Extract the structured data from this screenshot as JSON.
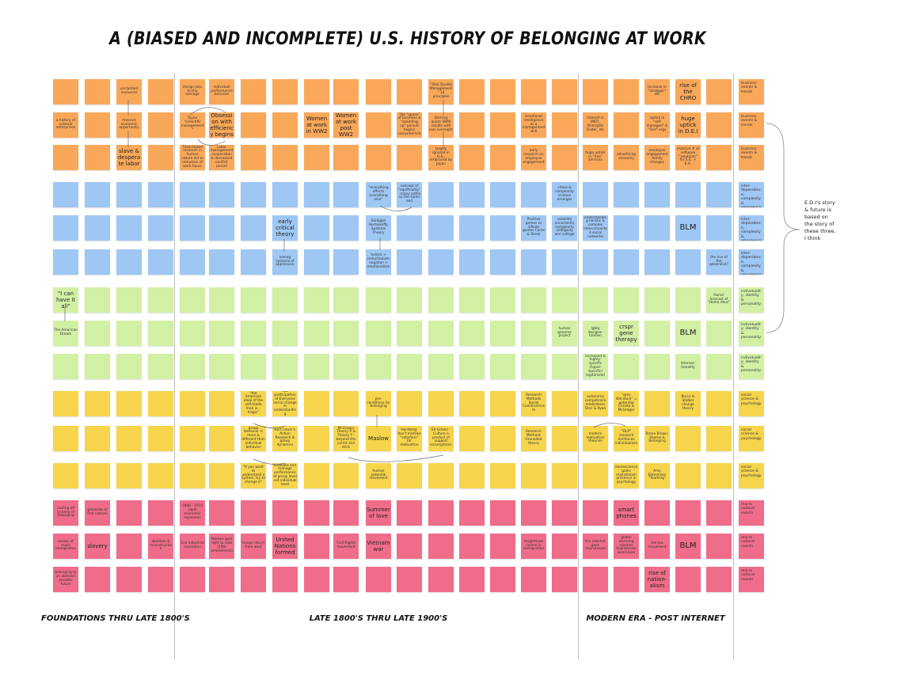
{
  "title": "A (BIASED AND INCOMPLETE) U.S. HISTORY OF BELONGING AT WORK",
  "eras": [
    {
      "label": "FOUNDATIONS THRU LATE 1800'S"
    },
    {
      "label": "LATE 1800'S THRU  LATE 1900'S"
    },
    {
      "label": "MODERN ERA - POST INTERNET"
    }
  ],
  "annotation": "E.D.I's story & future is based on the story of these three, I think",
  "colors": {
    "orange": "#f9a85a",
    "blue": "#9ec7f4",
    "light_green": "#d2f0a4",
    "yellow": "#f6d54c",
    "pink": "#ef6d8a"
  },
  "rows": [
    {
      "color": "orange",
      "category": "business events & trends",
      "notes": [
        {
          "col": 2,
          "text": "unclaimed resources"
        },
        {
          "col": 4,
          "text": "design jobs to the average"
        },
        {
          "col": 5,
          "text": "individual performance bonuses"
        },
        {
          "col": 12,
          "text": "\"Total Quality Management\" 14 principles"
        },
        {
          "col": 19,
          "text": "Increase in \"strategic\" HR"
        },
        {
          "col": 20,
          "text": "rise of the CHRO",
          "size": "big"
        }
      ]
    },
    {
      "color": "orange",
      "category": "business events & trends",
      "notes": [
        {
          "col": 0,
          "text": "a history of colonial enterprises"
        },
        {
          "col": 2,
          "text": "massive economic opportunity"
        },
        {
          "col": 4,
          "text": "Taylor \"scientific management\""
        },
        {
          "col": 5,
          "text": "Obsession with efficiency begins",
          "size": "big"
        },
        {
          "col": 8,
          "text": "Women at work in WW2",
          "size": "big"
        },
        {
          "col": 9,
          "text": "Women at work post WW2",
          "size": "big"
        },
        {
          "col": 11,
          "text": "The \"space\" of business & \"speeding up\" pursuit begins consumerism"
        },
        {
          "col": 12,
          "text": "Deming quote (IBM) results with less oversight"
        },
        {
          "col": 15,
          "text": "Emotional intelligence as a management skill"
        },
        {
          "col": 17,
          "text": "interest in MBTI, Strengths Finder, etc"
        },
        {
          "col": 19,
          "text": "uptick in \"self-managed\" & \"Teal\" orgs"
        },
        {
          "col": 20,
          "text": "huge uptick in D.E.I",
          "size": "big"
        }
      ]
    },
    {
      "color": "orange",
      "category": "business events & trends",
      "notes": [
        {
          "col": 2,
          "text": "slave & desperate labor",
          "size": "big"
        },
        {
          "col": 4,
          "text": "Time-tested research in human nature led to reduction of work hours"
        },
        {
          "col": 5,
          "text": "Labor management cooperation & decreased conflict period"
        },
        {
          "col": 12,
          "text": "largely ignored in U.S., embraced by Japan"
        },
        {
          "col": 15,
          "text": "early research on employee engagement"
        },
        {
          "col": 17,
          "text": "huge uptick in \"free\" services"
        },
        {
          "col": 18,
          "text": "advertising economy"
        },
        {
          "col": 19,
          "text": "employee engagement family changes"
        },
        {
          "col": 20,
          "text": "massive # of software \"solutions\" for E.E. + E.X."
        }
      ]
    },
    {
      "color": "blue",
      "category": "inter-dependence, complexity & emergence",
      "notes": [
        {
          "col": 10,
          "text": "\"everything affects everything else\""
        },
        {
          "col": 11,
          "text": "concept of \"equifinality\" - many paths to the same end"
        },
        {
          "col": 16,
          "text": "chaos & complexity science emerges"
        }
      ]
    },
    {
      "color": "blue",
      "category": "inter-dependence, complexity & emergence",
      "notes": [
        {
          "col": 7,
          "text": "early critical theory",
          "size": "big"
        },
        {
          "col": 10,
          "text": "Biologist Bertalanffy Systems Theory"
        },
        {
          "col": 15,
          "text": "Positive games vs infinite games Carse & Sinek"
        },
        {
          "col": 16,
          "text": "volatility uncertainty complexity ambiguity war college"
        },
        {
          "col": 17,
          "text": "understanding holistic & complex interconnected social networks"
        },
        {
          "col": 20,
          "text": "BLM",
          "size": "huge"
        }
      ]
    },
    {
      "color": "blue",
      "category": "inter-dependence, complexity & emergence",
      "notes": [
        {
          "col": 7,
          "text": "seeing systems of oppression"
        },
        {
          "col": 10,
          "text": "holism > reductionism negation > emotionalism"
        },
        {
          "col": 21,
          "text": "the rise of the generalist?"
        }
      ]
    },
    {
      "color": "lgreen",
      "category": "individuality, identity & personality",
      "notes": [
        {
          "col": 0,
          "text": "\"I can have it all\"",
          "size": "big"
        },
        {
          "col": 21,
          "text": "Harari forecast of \"Homo deus\""
        }
      ]
    },
    {
      "color": "lgreen",
      "category": "individuality, identity & personality",
      "notes": [
        {
          "col": 0,
          "text": "The American Dream"
        },
        {
          "col": 16,
          "text": "human genome project"
        },
        {
          "col": 17,
          "text": "lgbtq designa-tization"
        },
        {
          "col": 18,
          "text": "crspr gene therapy",
          "size": "big"
        },
        {
          "col": 20,
          "text": "BLM",
          "size": "huge"
        }
      ]
    },
    {
      "color": "lgreen",
      "category": "individuality, identity & personality",
      "notes": [
        {
          "col": 17,
          "text": "Increased & highly-specific (hyper-specific) legitimized"
        },
        {
          "col": 20,
          "text": "intersec-tionality"
        }
      ]
    },
    {
      "color": "yellow",
      "category": "social science & psychology",
      "notes": [
        {
          "col": 6,
          "text": "\"the American ideal of the self-made man is... tragic\""
        },
        {
          "col": 7,
          "text": "Out participation of Everyone led to change in understanding"
        },
        {
          "col": 10,
          "text": "pre-conditions for belonging"
        },
        {
          "col": 15,
          "text": "Research Methods Social Constructivism"
        },
        {
          "col": 17,
          "text": "autonomy competence relatedness Deci & Ryan"
        },
        {
          "col": 18,
          "text": "\"grey literature\" = potential Christo & McGregor"
        },
        {
          "col": 20,
          "text": "Burns & Stalker change theory"
        }
      ]
    },
    {
      "color": "yellow",
      "category": "social science & psychology",
      "notes": [
        {
          "col": 6,
          "text": "group behavior is more & different than individual behavior"
        },
        {
          "col": 7,
          "text": "Kurt Lewin's Action Research & group dynamics"
        },
        {
          "col": 9,
          "text": "McGregor Theory X & Theory Y - beyond the carrot and stick"
        },
        {
          "col": 10,
          "text": "Maslow",
          "size": "big"
        },
        {
          "col": 11,
          "text": "Herzberg: don't mistake \"satisfiers\" for motivation"
        },
        {
          "col": 12,
          "text": "Ed Schein - Culture a product of support assumptions"
        },
        {
          "col": 15,
          "text": "Research Methods Grounded theory"
        },
        {
          "col": 17,
          "text": "modern motivation theories"
        },
        {
          "col": 18,
          "text": "\"DLP\" research reinforces individualism"
        },
        {
          "col": 19,
          "text": "Brene Brown: Shame & Belonging"
        }
      ]
    },
    {
      "color": "yellow",
      "category": "social science & psychology",
      "notes": [
        {
          "col": 6,
          "text": "\"If you want to understand a system, try to change it\""
        },
        {
          "col": 7,
          "text": "evaluate and manage performance at group level not individual level"
        },
        {
          "col": 10,
          "text": "human potential movement"
        },
        {
          "col": 18,
          "text": "neuroscience gains mainstream presence in psychology"
        },
        {
          "col": 19,
          "text": "Amy Edmonson \"Teaming\""
        }
      ]
    },
    {
      "color": "pink",
      "category": "macro cultural events",
      "notes": [
        {
          "col": 0,
          "text": "casting off tyranny of belonging"
        },
        {
          "col": 1,
          "text": "genocide of first nations"
        },
        {
          "col": 4,
          "text": "1880 - 1910 rapid economic expansion"
        },
        {
          "col": 10,
          "text": "Summer of love",
          "size": "big"
        },
        {
          "col": 18,
          "text": "smart phones",
          "size": "big"
        }
      ]
    },
    {
      "color": "pink",
      "category": "macro cultural events",
      "notes": [
        {
          "col": 0,
          "text": "waves of mass immigration"
        },
        {
          "col": 1,
          "text": "slavery",
          "size": "big"
        },
        {
          "col": 3,
          "text": "abolition & reconstruction"
        },
        {
          "col": 4,
          "text": "2nd industrial revolution"
        },
        {
          "col": 5,
          "text": "Women gain right to vote (19th amendment)"
        },
        {
          "col": 6,
          "text": "troops return from ww2"
        },
        {
          "col": 7,
          "text": "United Nations formed",
          "size": "big"
        },
        {
          "col": 9,
          "text": "Civil Rights movement"
        },
        {
          "col": 10,
          "text": "Vietnam war",
          "size": "big"
        },
        {
          "col": 15,
          "text": "heightened racism in immigration"
        },
        {
          "col": 17,
          "text": "the internet goes mainstream"
        },
        {
          "col": 18,
          "text": "global warming reaches mainstream awareness"
        },
        {
          "col": 19,
          "text": "me too movement"
        },
        {
          "col": 20,
          "text": "BLM",
          "size": "huge"
        }
      ]
    },
    {
      "color": "pink",
      "category": "macro cultural events",
      "notes": [
        {
          "col": 0,
          "text": "belonging to an abstract possible future"
        },
        {
          "col": 19,
          "text": "rise of nation-alism",
          "size": "big"
        }
      ]
    }
  ]
}
